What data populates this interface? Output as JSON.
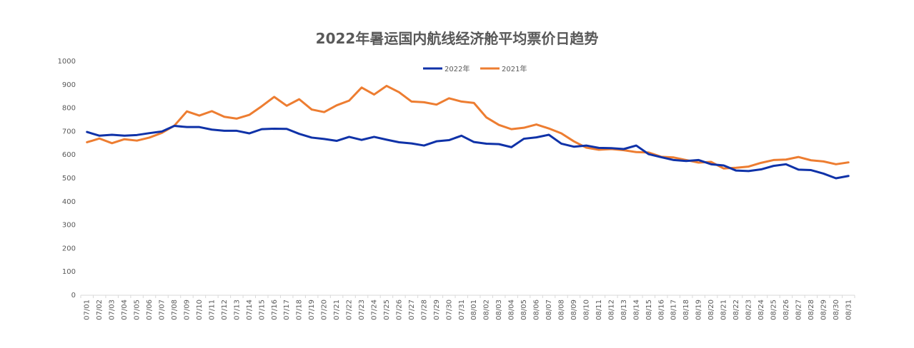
{
  "chart_data": {
    "type": "line",
    "title": "2022年暑运国内航线经济舱平均票价日趋势",
    "xlabel": "",
    "ylabel": "",
    "ylim": [
      0,
      1000
    ],
    "yticks": [
      0,
      100,
      200,
      300,
      400,
      500,
      600,
      700,
      800,
      900,
      1000
    ],
    "grid": false,
    "legend_position": "top-center",
    "categories": [
      "07/01",
      "07/02",
      "07/03",
      "07/04",
      "07/05",
      "07/06",
      "07/07",
      "07/08",
      "07/09",
      "07/10",
      "07/11",
      "07/12",
      "07/13",
      "07/14",
      "07/15",
      "07/16",
      "07/17",
      "07/18",
      "07/19",
      "07/20",
      "07/21",
      "07/22",
      "07/23",
      "07/24",
      "07/25",
      "07/26",
      "07/27",
      "07/28",
      "07/29",
      "07/30",
      "07/31",
      "08/01",
      "08/02",
      "08/03",
      "08/04",
      "08/05",
      "08/06",
      "08/07",
      "08/08",
      "08/09",
      "08/10",
      "08/11",
      "08/12",
      "08/13",
      "08/14",
      "08/15",
      "08/16",
      "08/17",
      "08/18",
      "08/19",
      "08/20",
      "08/21",
      "08/22",
      "08/23",
      "08/24",
      "08/25",
      "08/26",
      "08/27",
      "08/28",
      "08/29",
      "08/30",
      "08/31"
    ],
    "series": [
      {
        "name": "2022年",
        "color": "#0f32a8",
        "values": [
          698,
          682,
          686,
          682,
          685,
          693,
          700,
          724,
          719,
          719,
          708,
          703,
          703,
          692,
          710,
          712,
          711,
          690,
          674,
          668,
          660,
          677,
          664,
          677,
          665,
          654,
          649,
          640,
          658,
          663,
          682,
          655,
          648,
          646,
          633,
          669,
          675,
          686,
          648,
          635,
          640,
          630,
          629,
          625,
          640,
          603,
          590,
          578,
          574,
          578,
          560,
          555,
          533,
          531,
          538,
          553,
          560,
          537,
          535,
          520,
          500,
          510
        ]
      },
      {
        "name": "2021年",
        "color": "#ed7d31",
        "values": [
          654,
          670,
          650,
          667,
          661,
          674,
          694,
          725,
          786,
          768,
          787,
          763,
          755,
          771,
          808,
          848,
          810,
          838,
          794,
          783,
          812,
          832,
          888,
          858,
          895,
          868,
          828,
          825,
          815,
          842,
          828,
          822,
          760,
          728,
          710,
          716,
          730,
          713,
          692,
          658,
          631,
          622,
          625,
          620,
          612,
          610,
          592,
          589,
          578,
          567,
          570,
          542,
          545,
          550,
          566,
          578,
          580,
          591,
          577,
          572,
          560,
          568
        ]
      }
    ]
  }
}
